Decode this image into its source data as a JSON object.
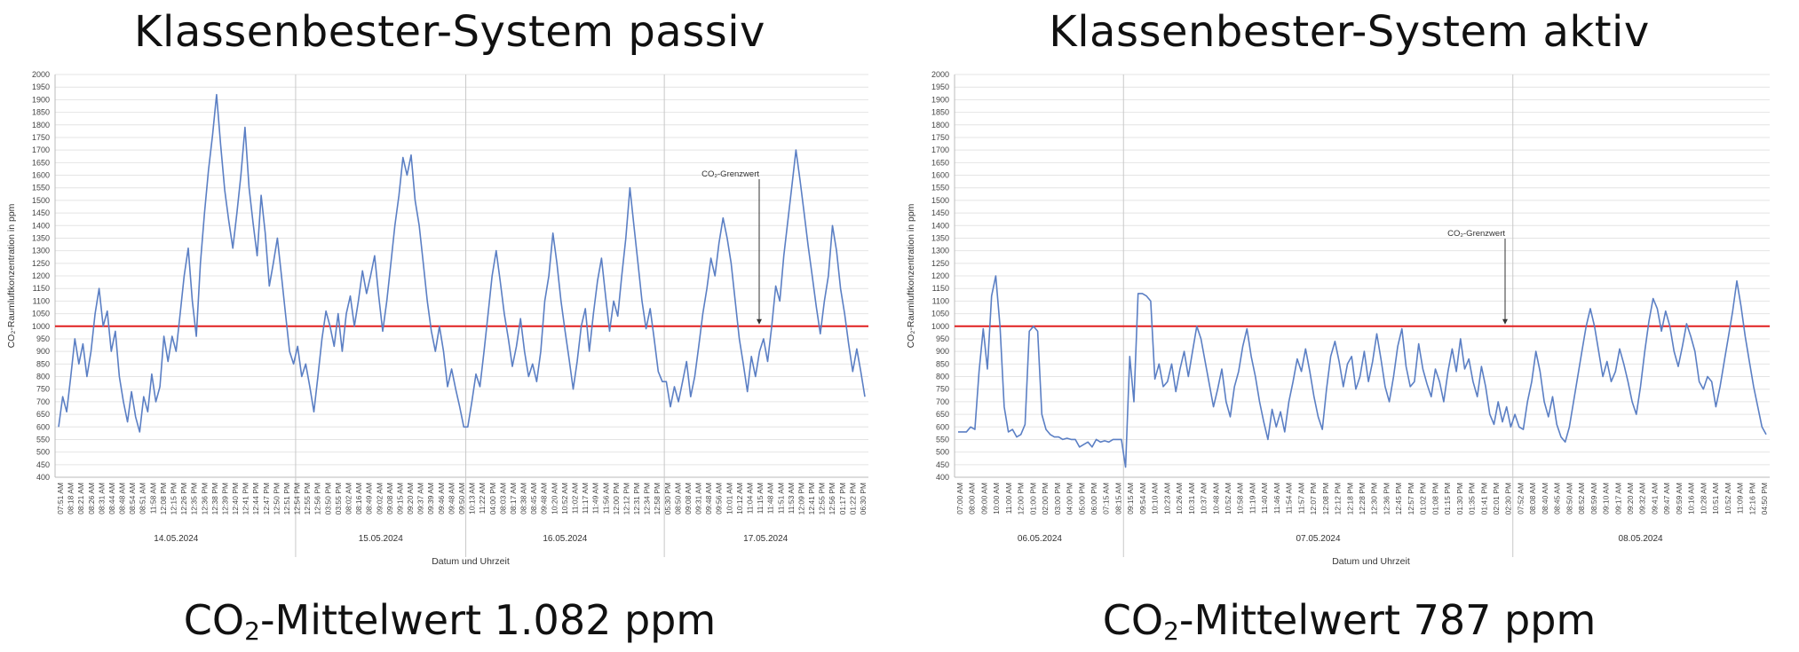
{
  "panels": [
    {
      "title": "Klassenbester-System passiv",
      "mean_label": {
        "prefix": "CO",
        "subscript": "2",
        "suffix": "-Mittelwert 1.082 ppm"
      },
      "chart": {
        "ylabel": "CO₂-Raumluftkonzentration in ppm",
        "xlabel": "Datum und Uhrzeit",
        "annotation": "CO₂-Grenzwert",
        "dates": [
          "14.05.2024",
          "15.05.2024",
          "16.05.2024",
          "17.05.2024"
        ],
        "time_labels": [
          "07:51 AM",
          "08:18 AM",
          "08:21 AM",
          "08:26 AM",
          "08:31 AM",
          "08:44 AM",
          "08:48 AM",
          "08:54 AM",
          "08:51 AM",
          "11:58 AM",
          "12:08 PM",
          "12:15 PM",
          "12:26 PM",
          "12:35 PM",
          "12:36 PM",
          "12:38 PM",
          "12:39 PM",
          "12:40 PM",
          "12:41 PM",
          "12:44 PM",
          "12:47 PM",
          "12:50 PM",
          "12:51 PM",
          "12:54 PM",
          "12:55 PM",
          "12:56 PM",
          "03:50 PM",
          "03:55 PM",
          "08:02 AM",
          "08:16 AM",
          "08:49 AM",
          "09:02 AM",
          "09:08 AM",
          "09:15 AM",
          "09:20 AM",
          "09:37 AM",
          "09:39 AM",
          "09:46 AM",
          "09:48 AM",
          "09:50 AM",
          "10:13 AM",
          "11:22 AM",
          "04:00 PM",
          "08:03 AM",
          "08:17 AM",
          "08:38 AM",
          "08:45 AM",
          "09:48 AM",
          "10:20 AM",
          "10:52 AM",
          "11:02 AM",
          "11:17 AM",
          "11:49 AM",
          "11:56 AM",
          "12:00 PM",
          "12:12 PM",
          "12:31 PM",
          "12:34 PM",
          "12:58 PM",
          "05:30 PM",
          "08:50 AM",
          "09:08 AM",
          "09:31 AM",
          "09:48 AM",
          "09:56 AM",
          "10:01 AM",
          "10:12 AM",
          "11:04 AM",
          "11:15 AM",
          "11:48 AM",
          "11:51 AM",
          "11:53 AM",
          "12:09 PM",
          "12:41 PM",
          "12:55 PM",
          "12:56 PM",
          "01:17 PM",
          "01:22 PM",
          "06:30 PM"
        ]
      }
    },
    {
      "title": "Klassenbester-System aktiv",
      "mean_label": {
        "prefix": "CO",
        "subscript": "2",
        "suffix": "-Mittelwert 787 ppm"
      },
      "chart": {
        "ylabel": "CO₂-Raumluftkonzentration in ppm",
        "xlabel": "Datum und Uhrzeit",
        "annotation": "CO₂-Grenzwert",
        "dates": [
          "06.05.2024",
          "07.05.2024",
          "08.05.2024"
        ],
        "time_labels": [
          "07:00 AM",
          "08:00 AM",
          "09:00 AM",
          "10:00 AM",
          "11:00 AM",
          "12:00 PM",
          "01:00 PM",
          "02:00 PM",
          "03:00 PM",
          "04:00 PM",
          "05:00 PM",
          "06:00 PM",
          "07:15 AM",
          "08:15 AM",
          "09:15 AM",
          "09:54 AM",
          "10:10 AM",
          "10:23 AM",
          "10:26 AM",
          "10:31 AM",
          "10:37 AM",
          "10:48 AM",
          "10:52 AM",
          "10:58 AM",
          "11:19 AM",
          "11:40 AM",
          "11:46 AM",
          "11:54 AM",
          "11:57 AM",
          "12:07 PM",
          "12:08 PM",
          "12:12 PM",
          "12:18 PM",
          "12:28 PM",
          "12:30 PM",
          "12:36 PM",
          "12:45 PM",
          "12:57 PM",
          "01:02 PM",
          "01:08 PM",
          "01:15 PM",
          "01:30 PM",
          "01:35 PM",
          "01:41 PM",
          "02:01 PM",
          "02:30 PM",
          "07:52 AM",
          "08:08 AM",
          "08:40 AM",
          "08:45 AM",
          "08:50 AM",
          "08:52 AM",
          "08:59 AM",
          "09:10 AM",
          "09:17 AM",
          "09:20 AM",
          "09:32 AM",
          "09:41 AM",
          "09:47 AM",
          "09:59 AM",
          "10:16 AM",
          "10:28 AM",
          "10:51 AM",
          "10:52 AM",
          "11:09 AM",
          "12:16 PM",
          "04:50 PM"
        ]
      }
    }
  ],
  "chart_data": [
    {
      "type": "line",
      "title": "Klassenbester-System passiv",
      "xlabel": "Datum und Uhrzeit",
      "ylabel": "CO₂-Raumluftkonzentration in ppm",
      "ylim": [
        400,
        2000
      ],
      "ytick_step": 50,
      "grid": true,
      "threshold": {
        "value": 1000,
        "color": "#e02020",
        "label": "CO₂-Grenzwert"
      },
      "line_color": "#5b7fc4",
      "days": [
        {
          "date": "14.05.2024",
          "values": [
            600,
            720,
            660,
            800,
            950,
            850,
            930,
            800,
            900,
            1050,
            1150,
            1000,
            1060,
            900,
            980,
            800,
            700,
            620,
            740,
            640,
            580,
            720,
            660,
            810,
            700,
            760,
            960,
            860,
            960,
            900,
            1050,
            1200,
            1310,
            1100,
            960,
            1250,
            1450,
            1620,
            1760,
            1920,
            1720,
            1540,
            1420,
            1310,
            1450,
            1600,
            1790,
            1550,
            1410,
            1280,
            1520,
            1370,
            1160,
            1250,
            1350,
            1200,
            1050,
            900,
            850
          ]
        },
        {
          "date": "15.05.2024",
          "values": [
            920,
            800,
            850,
            760,
            660,
            800,
            950,
            1060,
            1000,
            920,
            1050,
            900,
            1050,
            1120,
            1000,
            1100,
            1220,
            1130,
            1200,
            1280,
            1120,
            980,
            1100,
            1250,
            1400,
            1520,
            1670,
            1600,
            1680,
            1500,
            1400,
            1250,
            1100,
            980,
            900,
            1000,
            900,
            760,
            830,
            750,
            680,
            600
          ]
        },
        {
          "date": "16.05.2024",
          "values": [
            600,
            700,
            810,
            760,
            900,
            1050,
            1200,
            1300,
            1180,
            1050,
            950,
            840,
            920,
            1030,
            900,
            800,
            850,
            780,
            900,
            1100,
            1200,
            1370,
            1250,
            1100,
            980,
            870,
            750,
            860,
            1000,
            1070,
            900,
            1050,
            1180,
            1270,
            1120,
            980,
            1100,
            1040,
            1200,
            1350,
            1550,
            1400,
            1250,
            1100,
            990,
            1070,
            950,
            820,
            780
          ]
        },
        {
          "date": "17.05.2024",
          "values": [
            780,
            680,
            760,
            700,
            780,
            860,
            720,
            800,
            920,
            1050,
            1150,
            1270,
            1200,
            1330,
            1430,
            1350,
            1250,
            1100,
            950,
            850,
            740,
            880,
            800,
            900,
            950,
            860,
            1000,
            1160,
            1100,
            1280,
            1420,
            1560,
            1700,
            1580,
            1450,
            1320,
            1200,
            1080,
            970,
            1100,
            1200,
            1400,
            1300,
            1150,
            1050,
            930,
            820,
            910,
            820,
            720
          ]
        }
      ]
    },
    {
      "type": "line",
      "title": "Klassenbester-System aktiv",
      "xlabel": "Datum und Uhrzeit",
      "ylabel": "CO₂-Raumluftkonzentration in ppm",
      "ylim": [
        400,
        2000
      ],
      "ytick_step": 50,
      "grid": true,
      "threshold": {
        "value": 1000,
        "color": "#e02020",
        "label": "CO₂-Grenzwert"
      },
      "line_color": "#5b7fc4",
      "days": [
        {
          "date": "06.05.2024",
          "values": [
            580,
            580,
            580,
            600,
            590,
            820,
            990,
            830,
            1120,
            1200,
            1000,
            680,
            580,
            590,
            560,
            570,
            610,
            980,
            1000,
            980,
            650,
            590,
            570,
            560,
            560,
            550,
            555,
            550,
            550,
            520,
            530,
            540,
            520,
            550,
            540,
            545,
            540,
            550,
            550,
            550
          ]
        },
        {
          "date": "07.05.2024",
          "values": [
            440,
            880,
            700,
            1130,
            1130,
            1120,
            1100,
            790,
            850,
            760,
            780,
            850,
            740,
            830,
            900,
            800,
            900,
            1000,
            950,
            860,
            770,
            680,
            750,
            830,
            700,
            640,
            760,
            820,
            920,
            990,
            880,
            800,
            700,
            620,
            550,
            670,
            600,
            660,
            580,
            700,
            780,
            870,
            820,
            910,
            820,
            720,
            640,
            590,
            750,
            880,
            940,
            860,
            760,
            850,
            880,
            750,
            800,
            900,
            780,
            860,
            970,
            870,
            760,
            700,
            800,
            920,
            990,
            840,
            760,
            780,
            930,
            830,
            770,
            720,
            830,
            780,
            700,
            820,
            910,
            820,
            950,
            830,
            870,
            780,
            720,
            840,
            760,
            650,
            610,
            700,
            620,
            680,
            600
          ]
        },
        {
          "date": "08.05.2024",
          "values": [
            650,
            600,
            590,
            700,
            780,
            900,
            820,
            700,
            640,
            720,
            610,
            560,
            540,
            600,
            700,
            800,
            900,
            1000,
            1070,
            1000,
            900,
            800,
            860,
            780,
            820,
            910,
            850,
            780,
            700,
            650,
            760,
            900,
            1020,
            1110,
            1070,
            980,
            1060,
            1000,
            900,
            840,
            920,
            1010,
            960,
            900,
            780,
            750,
            800,
            780,
            680,
            760,
            860,
            960,
            1060,
            1180,
            1080,
            960,
            860,
            760,
            680,
            600,
            570
          ]
        }
      ]
    }
  ]
}
